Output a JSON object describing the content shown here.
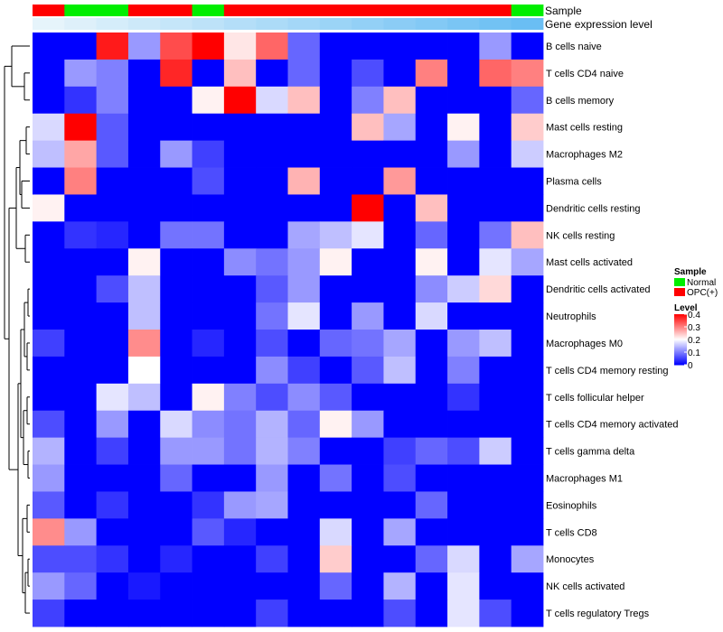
{
  "chart_data": {
    "type": "heatmap",
    "title": "",
    "annotation_tracks": {
      "sample_label": "Sample",
      "expression_label": "Gene expression level",
      "sample_groups": [
        "OPC(+)",
        "Normal",
        "Normal",
        "OPC(+)",
        "OPC(+)",
        "Normal",
        "OPC(+)",
        "OPC(+)",
        "OPC(+)",
        "OPC(+)",
        "OPC(+)",
        "OPC(+)",
        "OPC(+)",
        "OPC(+)",
        "OPC(+)",
        "Normal"
      ],
      "expression_levels": [
        0.0,
        0.06,
        0.12,
        0.18,
        0.24,
        0.3,
        0.36,
        0.42,
        0.48,
        0.54,
        0.6,
        0.66,
        0.72,
        0.78,
        0.84,
        0.9
      ]
    },
    "rows": [
      "B cells naive",
      "T cells CD4 naive",
      "B cells memory",
      "Mast cells resting",
      "Macrophages M2",
      "Plasma cells",
      "Dendritic cells resting",
      "NK cells resting",
      "Mast cells activated",
      "Dendritic cells activated",
      "Neutrophils",
      "Macrophages M0",
      "T cells CD4 memory resting",
      "T cells follicular helper",
      "T cells CD4 memory activated",
      "T cells gamma delta",
      "Macrophages M1",
      "Eosinophils",
      "T cells CD8",
      "Monocytes",
      "NK cells activated",
      "T cells regulatory  Tregs"
    ],
    "values": [
      [
        0,
        0,
        0.38,
        0.12,
        0.34,
        0.4,
        0.22,
        0.32,
        0.08,
        0,
        0,
        0,
        0,
        0,
        0.12,
        0
      ],
      [
        0,
        0.12,
        0.1,
        0,
        0.37,
        0,
        0.25,
        0,
        0.08,
        0,
        0.06,
        0,
        0.3,
        0,
        0.32,
        0.3
      ],
      [
        0,
        0.04,
        0.1,
        0,
        0,
        0.21,
        0.4,
        0.17,
        0.25,
        0,
        0.1,
        0.25,
        0,
        0,
        0,
        0.08
      ],
      [
        0.17,
        0.4,
        0.07,
        0,
        0,
        0,
        0,
        0,
        0,
        0,
        0.25,
        0.13,
        0,
        0.21,
        0,
        0.24
      ],
      [
        0.15,
        0.27,
        0.07,
        0,
        0.12,
        0.05,
        0,
        0,
        0,
        0,
        0,
        0,
        0,
        0.12,
        0,
        0.16
      ],
      [
        0,
        0.3,
        0,
        0,
        0,
        0.06,
        0,
        0,
        0.26,
        0,
        0,
        0.28,
        0,
        0,
        0,
        0
      ],
      [
        0.21,
        0,
        0,
        0,
        0,
        0,
        0,
        0,
        0,
        0,
        0.4,
        0,
        0.25,
        0,
        0,
        0
      ],
      [
        0,
        0.04,
        0.03,
        0,
        0.09,
        0.09,
        0,
        0,
        0.13,
        0.15,
        0.18,
        0,
        0.08,
        0,
        0.09,
        0.25
      ],
      [
        0,
        0,
        0,
        0.21,
        0,
        0,
        0.11,
        0.09,
        0.12,
        0.21,
        0,
        0,
        0.21,
        0,
        0.18,
        0.13
      ],
      [
        0,
        0,
        0.06,
        0.15,
        0,
        0,
        0,
        0.07,
        0.12,
        0,
        0,
        0,
        0.11,
        0.16,
        0.23,
        0
      ],
      [
        0,
        0,
        0,
        0.15,
        0,
        0,
        0,
        0.09,
        0.18,
        0,
        0.12,
        0,
        0.17,
        0,
        0,
        0
      ],
      [
        0.05,
        0,
        0,
        0.29,
        0,
        0.03,
        0,
        0.06,
        0,
        0.08,
        0.09,
        0.13,
        0,
        0.12,
        0.15,
        0
      ],
      [
        0,
        0,
        0,
        0.2,
        0,
        0,
        0,
        0.11,
        0.05,
        0,
        0.07,
        0.15,
        0,
        0.1,
        0,
        0
      ],
      [
        0,
        0,
        0.18,
        0.15,
        0,
        0.21,
        0.1,
        0.06,
        0.11,
        0.07,
        0,
        0,
        0,
        0.04,
        0,
        0
      ],
      [
        0.06,
        0,
        0.12,
        0,
        0.17,
        0.11,
        0.09,
        0.14,
        0.08,
        0.21,
        0.12,
        0,
        0,
        0,
        0,
        0
      ],
      [
        0.14,
        0,
        0.05,
        0,
        0.12,
        0.12,
        0.09,
        0.14,
        0.1,
        0,
        0,
        0.05,
        0.08,
        0.06,
        0.16,
        0
      ],
      [
        0.12,
        0,
        0,
        0,
        0.08,
        0,
        0,
        0.12,
        0,
        0.09,
        0,
        0.06,
        0,
        0,
        0,
        0
      ],
      [
        0.07,
        0,
        0.04,
        0,
        0,
        0.04,
        0.12,
        0.13,
        0,
        0,
        0,
        0,
        0.08,
        0,
        0,
        0
      ],
      [
        0.29,
        0.12,
        0,
        0,
        0,
        0.07,
        0.03,
        0,
        0,
        0.17,
        0,
        0.13,
        0,
        0,
        0,
        0
      ],
      [
        0.06,
        0.06,
        0.04,
        0,
        0.03,
        0,
        0,
        0.05,
        0,
        0.24,
        0,
        0,
        0.08,
        0.17,
        0,
        0.13
      ],
      [
        0.12,
        0.08,
        0,
        0.02,
        0,
        0,
        0,
        0,
        0,
        0.08,
        0,
        0.14,
        0,
        0.18,
        0,
        0
      ],
      [
        0.05,
        0,
        0,
        0,
        0,
        0,
        0,
        0.05,
        0,
        0,
        0,
        0.06,
        0,
        0.18,
        0.06,
        0
      ]
    ],
    "legend": {
      "sample_title": "Sample",
      "sample_entries": [
        {
          "label": "Normal",
          "color": "#00ee00"
        },
        {
          "label": "OPC(+)",
          "color": "#ff0000"
        }
      ],
      "level_title": "Level",
      "level_ticks": [
        0.4,
        0.3,
        0.2,
        0.1,
        0
      ],
      "level_tick_labels": [
        "0.4",
        "0.3",
        "0.2",
        "0.1",
        "0"
      ],
      "range": [
        0,
        0.4
      ]
    },
    "colors": {
      "low": "#0000ff",
      "mid": "#ffffff",
      "high": "#ff0000",
      "normal": "#00ee00",
      "opc": "#ff0000",
      "track_low": "#e6f4fb",
      "track_high": "#5cb8f2"
    }
  }
}
